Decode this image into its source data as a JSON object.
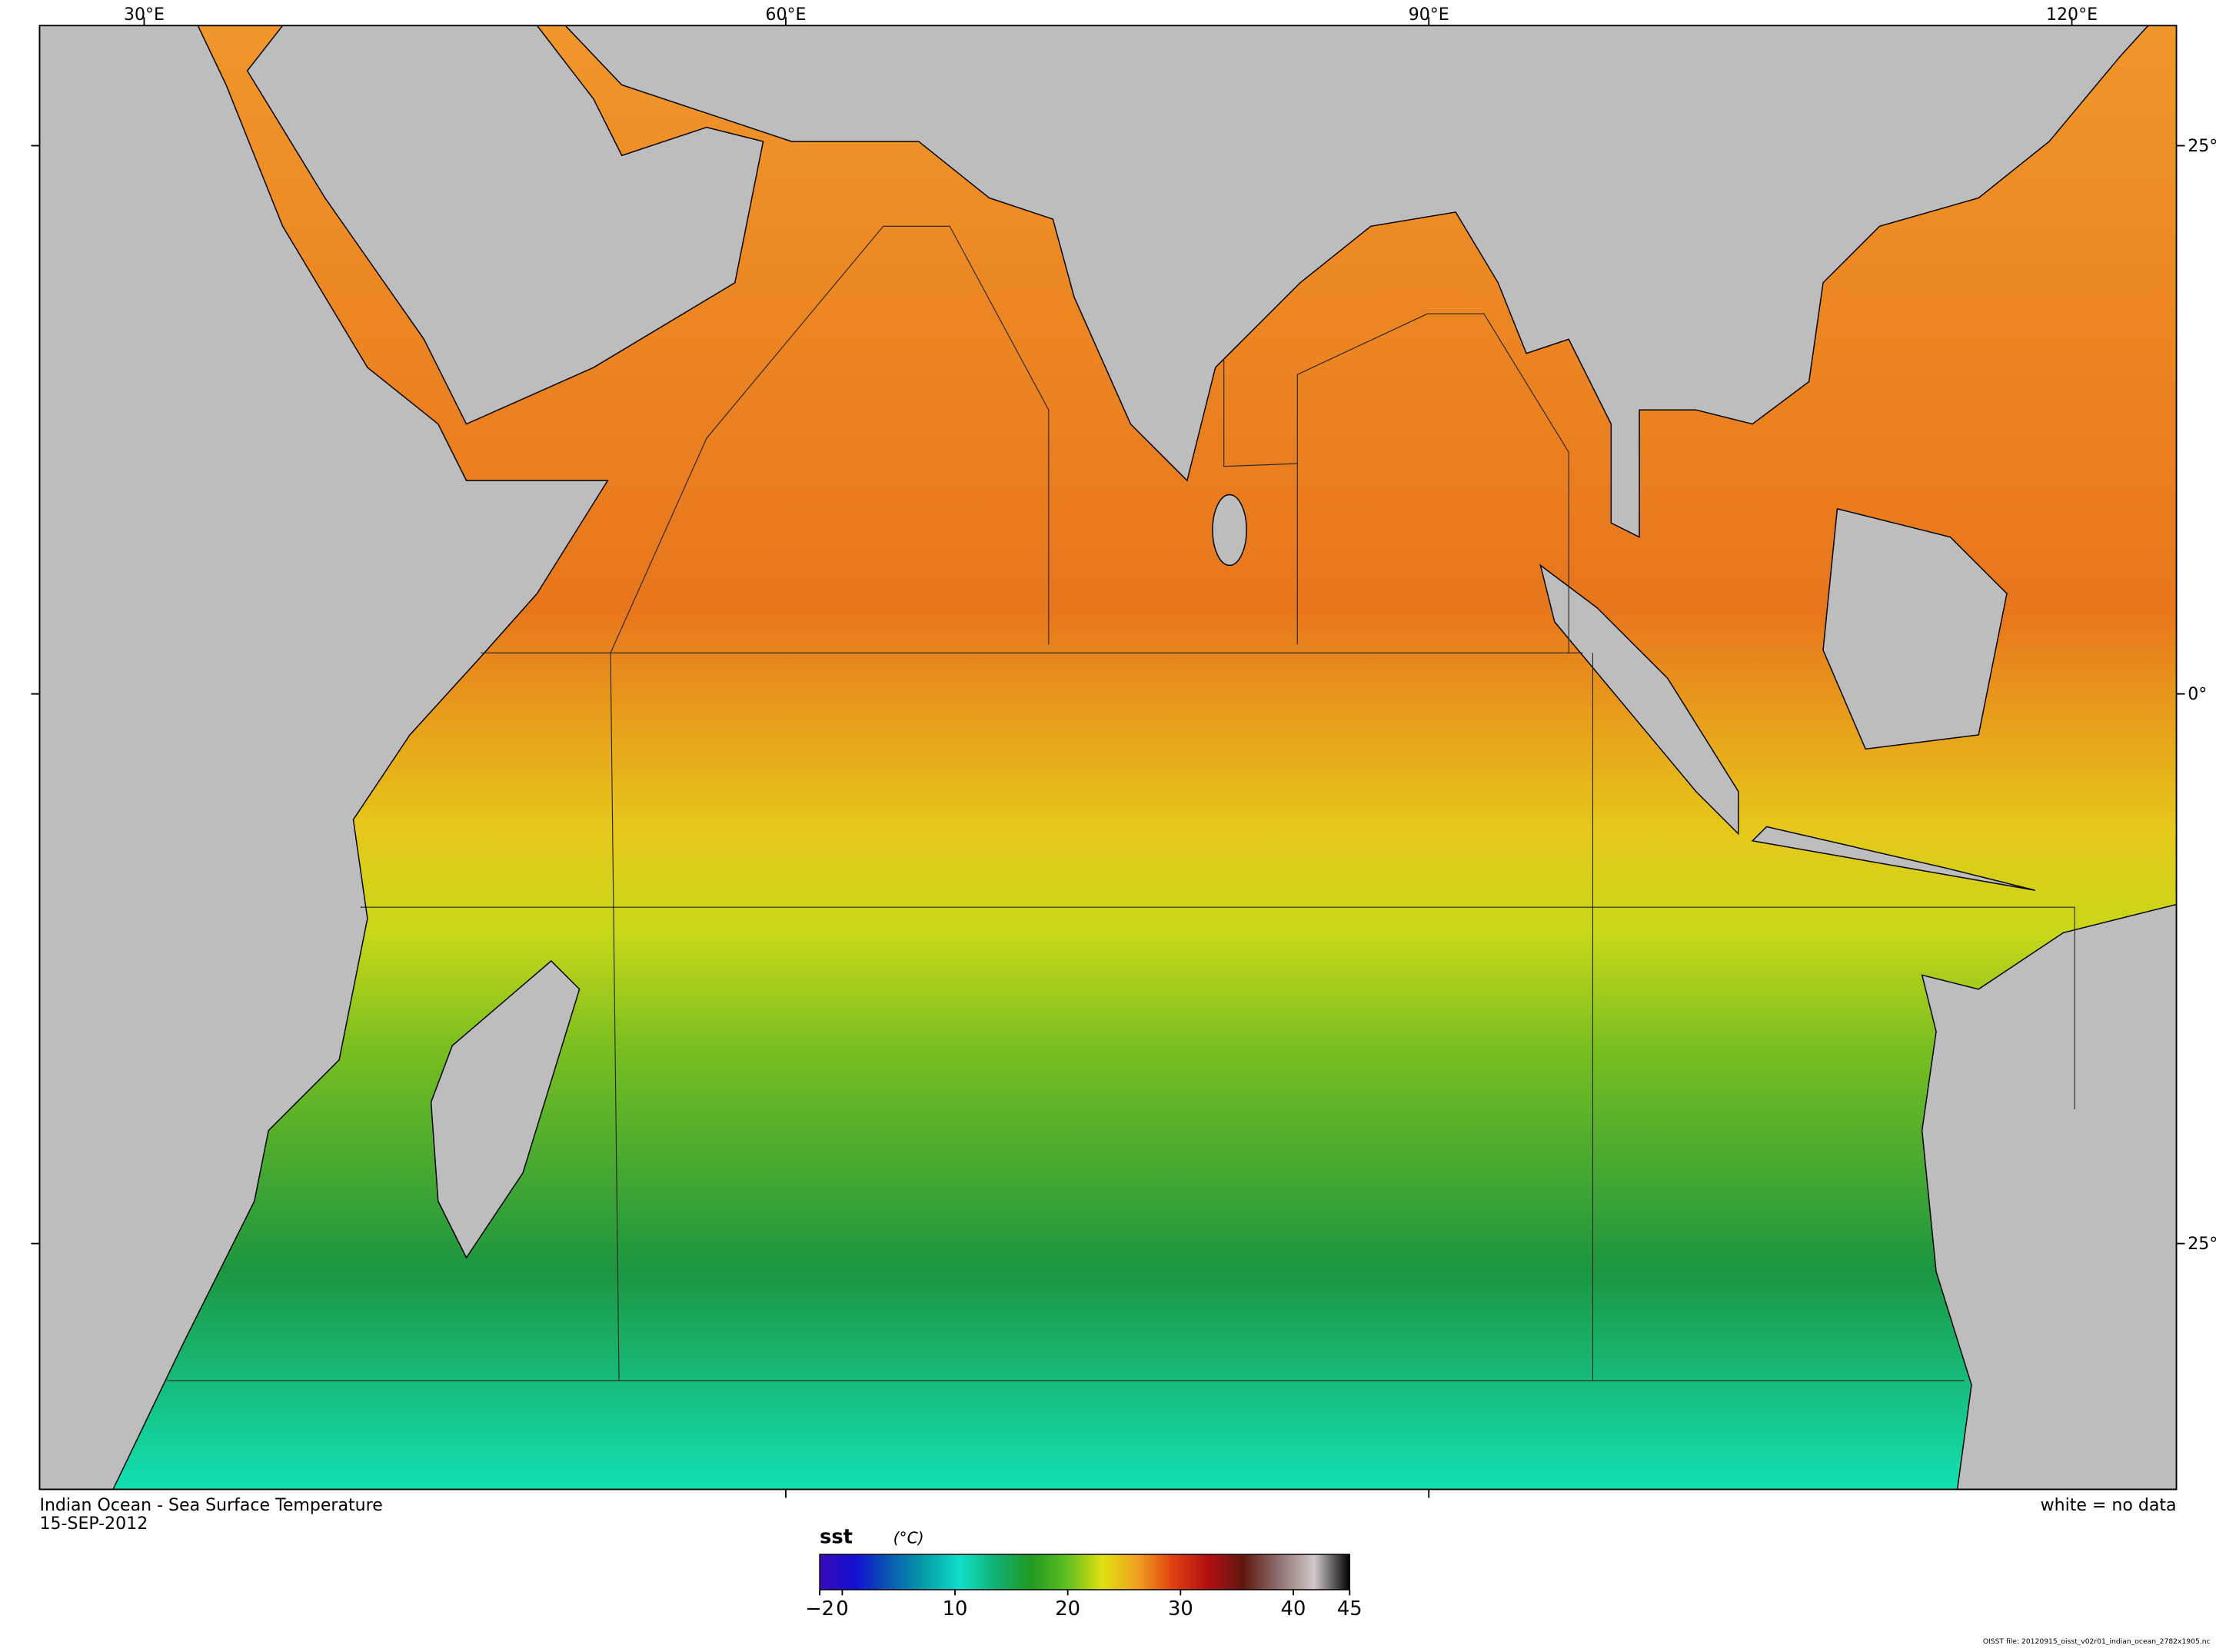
{
  "map": {
    "title": "Indian Ocean - Sea Surface Temperature",
    "date": "15-SEP-2012",
    "note": "white = no data",
    "file": "OISST file: 20120915_oisst_v02r01_indian_ocean_2782x1905.nc",
    "lon_labels": [
      "30°E",
      "60°E",
      "90°E",
      "120°E"
    ],
    "lat_labels": [
      "25°",
      "0°",
      "25°"
    ]
  },
  "colorbar": {
    "label": "sst",
    "unit": "(°C)",
    "lim": [
      -2,
      45
    ],
    "ticks": [
      {
        "value": -2,
        "label": "−2"
      },
      0,
      10,
      20,
      30,
      40,
      45
    ],
    "colors": [
      "#3a0ab8",
      "#1010d0",
      "#0a5ab0",
      "#06a0a8",
      "#10e0c8",
      "#10b070",
      "#209a20",
      "#60c020",
      "#e0e010",
      "#f0a020",
      "#e04010",
      "#b01010",
      "#601810",
      "#907070",
      "#d0c8c8",
      "#000000"
    ]
  }
}
